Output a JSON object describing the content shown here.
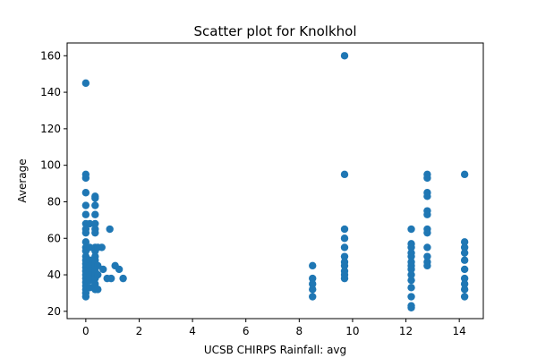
{
  "chart_data": {
    "type": "scatter",
    "title": "Scatter plot for Knolkhol",
    "xlabel": "UCSB CHIRPS Rainfall: avg",
    "ylabel": "Average",
    "xlim": [
      -0.7,
      14.9
    ],
    "ylim": [
      16,
      167
    ],
    "x_ticks": [
      0,
      2,
      4,
      6,
      8,
      10,
      12,
      14
    ],
    "y_ticks": [
      20,
      40,
      60,
      80,
      100,
      120,
      140,
      160
    ],
    "grid": false,
    "marker_color": "#1f77b4",
    "points": [
      {
        "x": 0.0,
        "y": 145
      },
      {
        "x": 0.0,
        "y": 95
      },
      {
        "x": 0.0,
        "y": 93
      },
      {
        "x": 0.0,
        "y": 85
      },
      {
        "x": 0.0,
        "y": 78
      },
      {
        "x": 0.0,
        "y": 73
      },
      {
        "x": 0.0,
        "y": 68
      },
      {
        "x": 0.0,
        "y": 65
      },
      {
        "x": 0.0,
        "y": 63
      },
      {
        "x": 0.0,
        "y": 58
      },
      {
        "x": 0.0,
        "y": 55
      },
      {
        "x": 0.0,
        "y": 53
      },
      {
        "x": 0.0,
        "y": 50
      },
      {
        "x": 0.0,
        "y": 48
      },
      {
        "x": 0.0,
        "y": 46
      },
      {
        "x": 0.0,
        "y": 44
      },
      {
        "x": 0.0,
        "y": 42
      },
      {
        "x": 0.0,
        "y": 40
      },
      {
        "x": 0.0,
        "y": 38
      },
      {
        "x": 0.0,
        "y": 36
      },
      {
        "x": 0.0,
        "y": 34
      },
      {
        "x": 0.0,
        "y": 32
      },
      {
        "x": 0.0,
        "y": 30
      },
      {
        "x": 0.0,
        "y": 28
      },
      {
        "x": 0.15,
        "y": 68
      },
      {
        "x": 0.15,
        "y": 55
      },
      {
        "x": 0.15,
        "y": 48
      },
      {
        "x": 0.15,
        "y": 45
      },
      {
        "x": 0.15,
        "y": 42
      },
      {
        "x": 0.15,
        "y": 40
      },
      {
        "x": 0.15,
        "y": 37
      },
      {
        "x": 0.15,
        "y": 33
      },
      {
        "x": 0.35,
        "y": 83
      },
      {
        "x": 0.35,
        "y": 82
      },
      {
        "x": 0.35,
        "y": 78
      },
      {
        "x": 0.35,
        "y": 73
      },
      {
        "x": 0.35,
        "y": 68
      },
      {
        "x": 0.35,
        "y": 65
      },
      {
        "x": 0.35,
        "y": 63
      },
      {
        "x": 0.35,
        "y": 55
      },
      {
        "x": 0.35,
        "y": 53
      },
      {
        "x": 0.35,
        "y": 50
      },
      {
        "x": 0.35,
        "y": 48
      },
      {
        "x": 0.35,
        "y": 46
      },
      {
        "x": 0.35,
        "y": 44
      },
      {
        "x": 0.35,
        "y": 42
      },
      {
        "x": 0.35,
        "y": 40
      },
      {
        "x": 0.35,
        "y": 38
      },
      {
        "x": 0.35,
        "y": 35
      },
      {
        "x": 0.35,
        "y": 32
      },
      {
        "x": 0.45,
        "y": 55
      },
      {
        "x": 0.45,
        "y": 45
      },
      {
        "x": 0.45,
        "y": 40
      },
      {
        "x": 0.45,
        "y": 32
      },
      {
        "x": 0.6,
        "y": 55
      },
      {
        "x": 0.65,
        "y": 43
      },
      {
        "x": 0.8,
        "y": 38
      },
      {
        "x": 0.9,
        "y": 65
      },
      {
        "x": 0.95,
        "y": 38
      },
      {
        "x": 1.1,
        "y": 45
      },
      {
        "x": 1.25,
        "y": 43
      },
      {
        "x": 1.4,
        "y": 38
      },
      {
        "x": 8.5,
        "y": 45
      },
      {
        "x": 8.5,
        "y": 38
      },
      {
        "x": 8.5,
        "y": 35
      },
      {
        "x": 8.5,
        "y": 32
      },
      {
        "x": 8.5,
        "y": 28
      },
      {
        "x": 9.7,
        "y": 160
      },
      {
        "x": 9.7,
        "y": 95
      },
      {
        "x": 9.7,
        "y": 65
      },
      {
        "x": 9.7,
        "y": 60
      },
      {
        "x": 9.7,
        "y": 55
      },
      {
        "x": 9.7,
        "y": 50
      },
      {
        "x": 9.7,
        "y": 47
      },
      {
        "x": 9.7,
        "y": 45
      },
      {
        "x": 9.7,
        "y": 42
      },
      {
        "x": 9.7,
        "y": 40
      },
      {
        "x": 9.7,
        "y": 38
      },
      {
        "x": 12.2,
        "y": 65
      },
      {
        "x": 12.2,
        "y": 57
      },
      {
        "x": 12.2,
        "y": 55
      },
      {
        "x": 12.2,
        "y": 52
      },
      {
        "x": 12.2,
        "y": 50
      },
      {
        "x": 12.2,
        "y": 47
      },
      {
        "x": 12.2,
        "y": 45
      },
      {
        "x": 12.2,
        "y": 43
      },
      {
        "x": 12.2,
        "y": 40
      },
      {
        "x": 12.2,
        "y": 37
      },
      {
        "x": 12.2,
        "y": 33
      },
      {
        "x": 12.2,
        "y": 28
      },
      {
        "x": 12.2,
        "y": 23
      },
      {
        "x": 12.2,
        "y": 22
      },
      {
        "x": 12.8,
        "y": 95
      },
      {
        "x": 12.8,
        "y": 93
      },
      {
        "x": 12.8,
        "y": 85
      },
      {
        "x": 12.8,
        "y": 83
      },
      {
        "x": 12.8,
        "y": 75
      },
      {
        "x": 12.8,
        "y": 73
      },
      {
        "x": 12.8,
        "y": 65
      },
      {
        "x": 12.8,
        "y": 63
      },
      {
        "x": 12.8,
        "y": 55
      },
      {
        "x": 12.8,
        "y": 50
      },
      {
        "x": 12.8,
        "y": 47
      },
      {
        "x": 12.8,
        "y": 45
      },
      {
        "x": 14.2,
        "y": 95
      },
      {
        "x": 14.2,
        "y": 58
      },
      {
        "x": 14.2,
        "y": 55
      },
      {
        "x": 14.2,
        "y": 52
      },
      {
        "x": 14.2,
        "y": 48
      },
      {
        "x": 14.2,
        "y": 43
      },
      {
        "x": 14.2,
        "y": 38
      },
      {
        "x": 14.2,
        "y": 35
      },
      {
        "x": 14.2,
        "y": 32
      },
      {
        "x": 14.2,
        "y": 28
      }
    ]
  }
}
